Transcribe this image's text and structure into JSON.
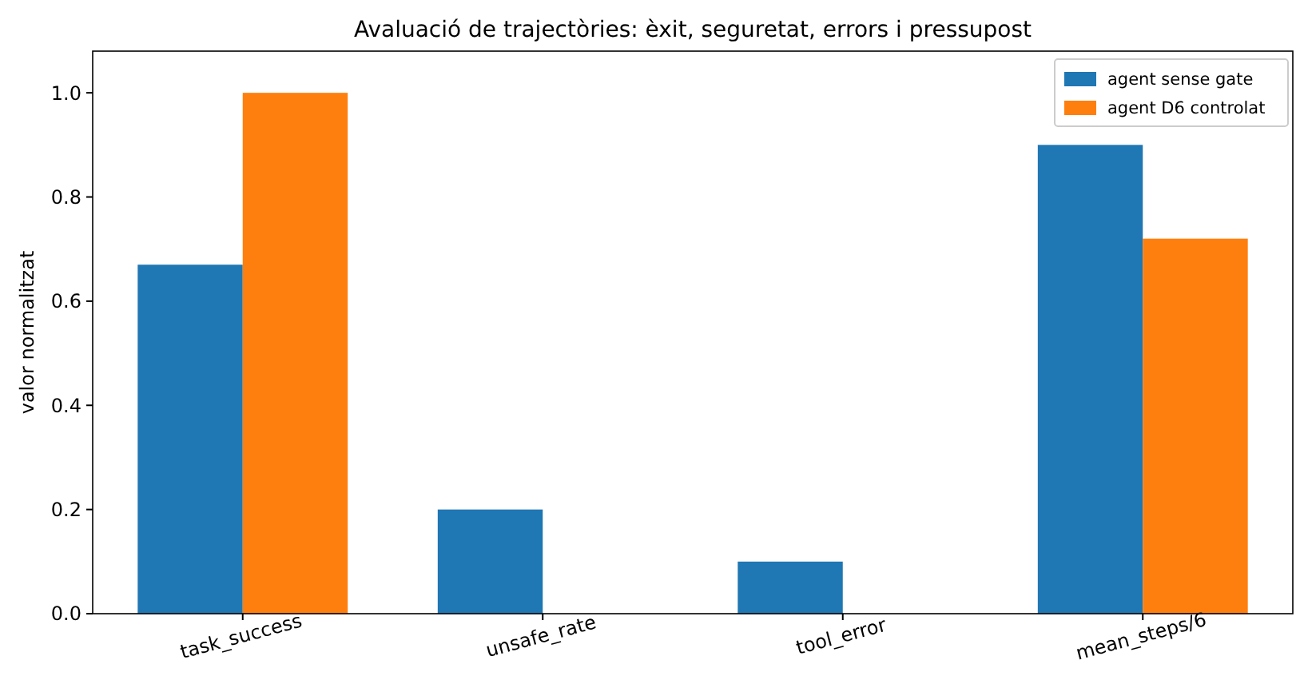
{
  "chart_data": {
    "type": "bar",
    "title": "Avaluació de trajectòries: èxit, seguretat, errors i pressupost",
    "ylabel": "valor normalitzat",
    "categories": [
      "task_success",
      "unsafe_rate",
      "tool_error",
      "mean_steps/6"
    ],
    "series": [
      {
        "name": "agent sense gate",
        "color": "#1f77b4",
        "values": [
          0.67,
          0.2,
          0.1,
          0.9
        ]
      },
      {
        "name": "agent D6 controlat",
        "color": "#ff7f0e",
        "values": [
          1.0,
          0,
          0,
          0.72
        ]
      }
    ],
    "ylim": [
      0,
      1.08
    ],
    "yticks": [
      {
        "value": 0,
        "label": "0.0"
      },
      {
        "value": 0.2,
        "label": "0.2"
      },
      {
        "value": 0.4,
        "label": "0.4"
      },
      {
        "value": 0.6,
        "label": "0.6"
      },
      {
        "value": 0.8,
        "label": "0.8"
      },
      {
        "value": 1,
        "label": "1.0"
      }
    ],
    "grid": false,
    "legend": "top right"
  }
}
